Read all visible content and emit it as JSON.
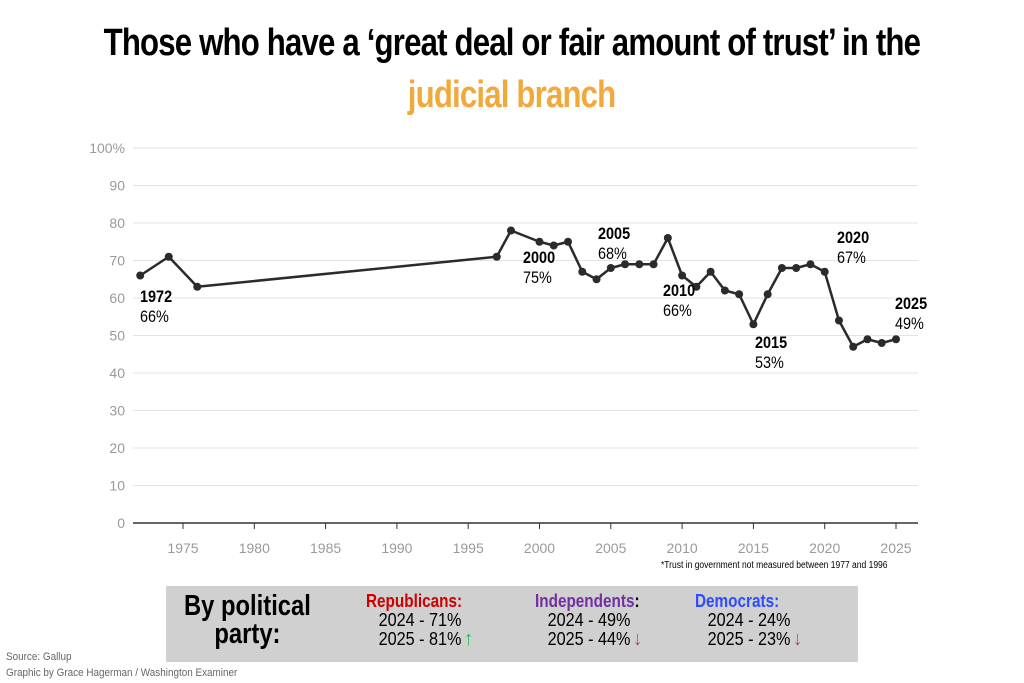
{
  "title_line1": "Those who have a ‘great deal or fair amount of trust’ in the",
  "title_line2": "judicial branch",
  "colors": {
    "line": "#2b2b2b",
    "title_accent": "#f2a93b",
    "republicans": "#cc0000",
    "independents": "#7030a0",
    "democrats": "#2e4bff",
    "up": "#1db954",
    "down": "#ee3333",
    "legend_bg": "#d0d0d0"
  },
  "chart_data": {
    "type": "line",
    "title": "Those who have a ‘great deal or fair amount of trust’ in the judicial branch",
    "xlim": [
      1972,
      2025
    ],
    "ylim": [
      0,
      100
    ],
    "y_ticks": [
      "0",
      "10",
      "20",
      "30",
      "40",
      "50",
      "60",
      "70",
      "80",
      "90",
      "100%"
    ],
    "x_ticks": [
      "1975",
      "1980",
      "1985",
      "1990",
      "1995",
      "2000",
      "2005",
      "2010",
      "2015",
      "2020",
      "2025"
    ],
    "grid": true,
    "series": [
      {
        "x": [
          1972,
          1974,
          1976,
          1997,
          1998,
          2000,
          2001,
          2002,
          2003,
          2004,
          2005,
          2006,
          2007,
          2008,
          2009,
          2010,
          2011,
          2012,
          2013,
          2014,
          2015,
          2016,
          2017,
          2018,
          2019,
          2020,
          2021,
          2022,
          2023,
          2024,
          2025
        ],
        "y": [
          66,
          71,
          63,
          71,
          78,
          75,
          74,
          75,
          67,
          65,
          68,
          69,
          69,
          69,
          76,
          66,
          63,
          67,
          62,
          61,
          53,
          61,
          68,
          68,
          69,
          67,
          54,
          47,
          49,
          48,
          49
        ]
      }
    ],
    "annotations": [
      {
        "year": "1972",
        "value": "66%"
      },
      {
        "year": "2000",
        "value": "75%"
      },
      {
        "year": "2005",
        "value": "68%"
      },
      {
        "year": "2010",
        "value": "66%"
      },
      {
        "year": "2015",
        "value": "53%"
      },
      {
        "year": "2020",
        "value": "67%"
      },
      {
        "year": "2025",
        "value": "49%"
      }
    ],
    "footnote": "*Trust in government not measured between 1977 and 1996"
  },
  "legend": {
    "title_line1": "By political",
    "title_line2": "party:",
    "parties": [
      {
        "name": "Republicans:",
        "line1": "2024 - 71%",
        "line2": "2025 - 81%",
        "trend": "up",
        "arrow": "↑"
      },
      {
        "name": "Independents",
        "colon": ":",
        "line1": "2024 - 49%",
        "line2": "2025 - 44%",
        "trend": "down",
        "arrow": "↓"
      },
      {
        "name": "Democrats:",
        "line1": "2024 - 24%",
        "line2": "2025 - 23%",
        "trend": "down",
        "arrow": "↓"
      }
    ]
  },
  "source": "Source: Gallup",
  "credit": "Graphic by Grace Hagerman / Washington Examiner"
}
